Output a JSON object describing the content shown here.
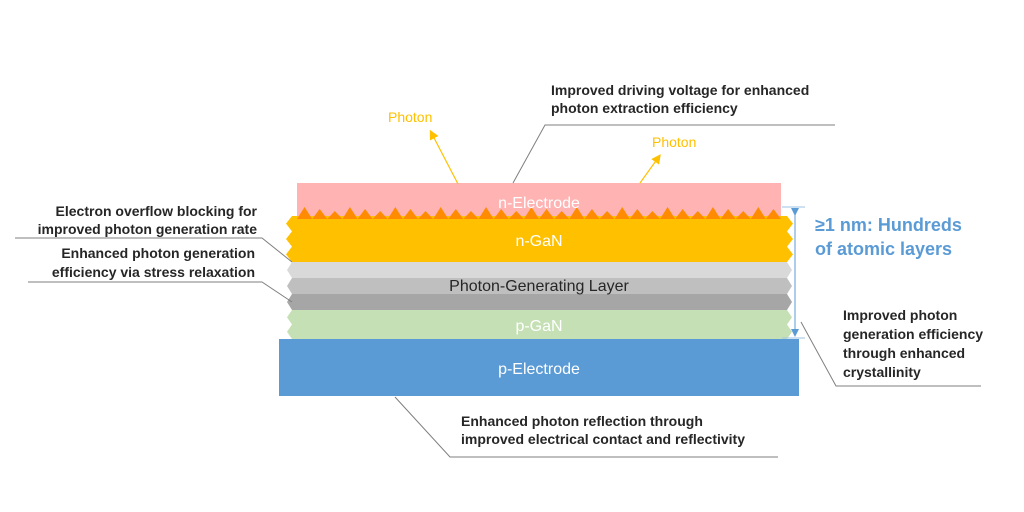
{
  "layers": {
    "n_electrode": {
      "label": "n-Electrode",
      "color": "#FFB3B3"
    },
    "n_gan": {
      "label": "n-GaN",
      "color": "#FFC000",
      "texture_color": "#FF8C00"
    },
    "photon_layer": {
      "label": "Photon-Generating Layer",
      "colors": [
        "#D9D9D9",
        "#BFBFBF",
        "#A6A6A6"
      ]
    },
    "p_gan": {
      "label": "p-GaN",
      "color": "#C5E0B4"
    },
    "p_electrode": {
      "label": "p-Electrode",
      "color": "#5B9BD5"
    }
  },
  "photons": {
    "label1": "Photon",
    "label2": "Photon",
    "color": "#FFC000"
  },
  "thickness": {
    "line1": "≥1 nm: Hundreds",
    "line2": "of atomic layers",
    "color": "#5B9BD5"
  },
  "annotations": {
    "top": [
      "Improved driving voltage for enhanced",
      "photon extraction efficiency"
    ],
    "left1": [
      "Electron overflow blocking for",
      "improved photon generation rate"
    ],
    "left2": [
      "Enhanced photon generation",
      "efficiency via stress relaxation"
    ],
    "right": [
      "Improved photon",
      "generation efficiency",
      "through enhanced",
      "crystallinity"
    ],
    "bottom": [
      "Enhanced photon reflection through",
      "improved electrical contact and reflectivity"
    ]
  }
}
